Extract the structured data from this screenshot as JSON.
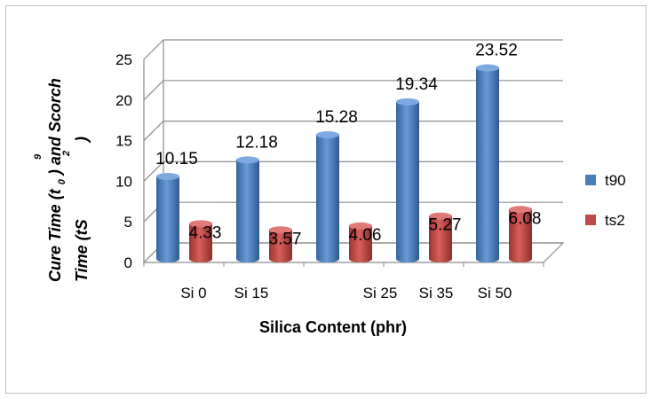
{
  "chart_data": {
    "type": "bar",
    "categories": [
      "Si 0",
      "Si 15",
      "Si 25",
      "Si 35",
      "Si 50"
    ],
    "series": [
      {
        "name": "t90",
        "values": [
          10.15,
          12.18,
          15.28,
          19.34,
          23.52
        ],
        "color": "#4a7ebb"
      },
      {
        "name": "ts2",
        "values": [
          4.33,
          3.57,
          4.06,
          5.27,
          6.08
        ],
        "color": "#be4b48"
      }
    ],
    "data_labels": {
      "t90": [
        "10.15",
        "12.18",
        "15.28",
        "19.34",
        "23.52"
      ],
      "ts2": [
        "4.33",
        "3.57",
        "4.06",
        "5.27",
        "6.08"
      ]
    },
    "xlabel": "Silica Content (phr)",
    "ylabel": {
      "line1": "Cure Time (t",
      "line1_sub": "9",
      "line1_mid": "0",
      "line1_end": ") and Scorch",
      "line2": "Time (tS",
      "line2_sub": "2",
      "line2_end": ")"
    },
    "ylim": [
      0,
      25
    ],
    "yticks": [
      "0",
      "5",
      "10",
      "15",
      "20",
      "25"
    ],
    "grid": true,
    "legend": "right",
    "style": "3d-cylinder"
  }
}
